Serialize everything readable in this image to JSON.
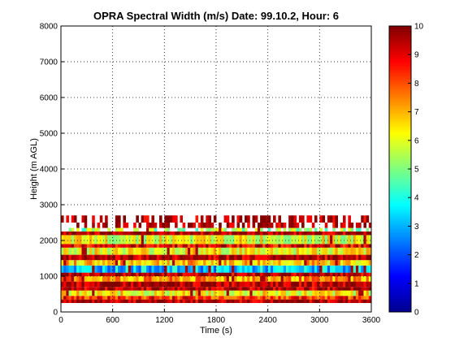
{
  "chart_data": {
    "type": "heatmap",
    "title": "OPRA Spectral Width (m/s)  Date: 99.10.2, Hour: 6",
    "xlabel": "Time (s)",
    "ylabel": "Height (m AGL)",
    "xlim": [
      0,
      3600
    ],
    "ylim": [
      0,
      8000
    ],
    "xticks": [
      "0",
      "600",
      "1200",
      "1800",
      "2400",
      "3000",
      "3600"
    ],
    "yticks": [
      "0",
      "1000",
      "2000",
      "3000",
      "4000",
      "5000",
      "6000",
      "7000",
      "8000"
    ],
    "grid": true,
    "colorbar": {
      "label": "",
      "clim": [
        0,
        10
      ],
      "ticks": [
        "0",
        "1",
        "2",
        "3",
        "4",
        "5",
        "6",
        "7",
        "8",
        "9",
        "10"
      ],
      "colormap": "jet"
    },
    "bands": [
      {
        "y0": 250,
        "y1": 350,
        "value": 9.6,
        "note": "dark red"
      },
      {
        "y0": 350,
        "y1": 450,
        "value": 8.3
      },
      {
        "y0": 450,
        "y1": 600,
        "value": 6.2
      },
      {
        "y0": 600,
        "y1": 700,
        "value": 9.5
      },
      {
        "y0": 700,
        "y1": 850,
        "value": 9.6
      },
      {
        "y0": 850,
        "y1": 1000,
        "value": 7.2
      },
      {
        "y0": 1000,
        "y1": 1100,
        "value": 9.5
      },
      {
        "y0": 1100,
        "y1": 1300,
        "value": 3.2
      },
      {
        "y0": 1300,
        "y1": 1450,
        "value": 6.8
      },
      {
        "y0": 1450,
        "y1": 1600,
        "value": 9.5
      },
      {
        "y0": 1600,
        "y1": 1800,
        "value": 6.2
      },
      {
        "y0": 1800,
        "y1": 1900,
        "value": 9.0
      },
      {
        "y0": 1900,
        "y1": 2150,
        "value": 6.0
      },
      {
        "y0": 2150,
        "y1": 2250,
        "value": 9.6
      },
      {
        "y0": 2250,
        "y1": 2350,
        "value": 5.3
      },
      {
        "y0": 2350,
        "y1": 2500,
        "value": 9.6
      },
      {
        "y0": 2500,
        "y1": 2700,
        "value": 9.7
      }
    ]
  }
}
